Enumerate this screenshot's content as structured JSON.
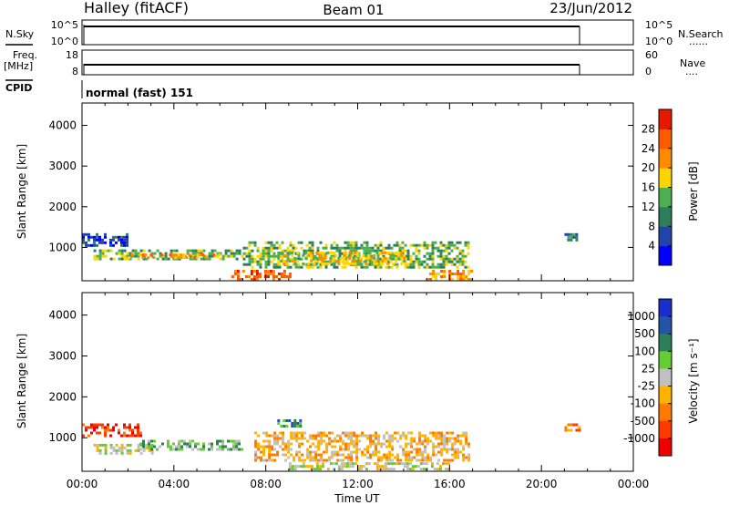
{
  "header": {
    "station": "Halley (fitACF)",
    "beam": "Beam 01",
    "date": "23/Jun/2012"
  },
  "top_panels": {
    "nsky_label": "N.Sky",
    "nsearch_label": "N.Search",
    "nsearch_dots": "......",
    "freq_label": "Freq.",
    "freq_unit": "[MHz]",
    "nave_label": "Nave",
    "nave_dots": "....",
    "cpid_label": "CPID",
    "cpid_value": "normal (fast) 151",
    "noise_ticks_left": [
      "10^5",
      "10^0"
    ],
    "noise_ticks_right": [
      "10^5",
      "10^0"
    ],
    "freq_ticks_left": [
      "18",
      "8"
    ],
    "nave_ticks_right": [
      "60",
      "0"
    ]
  },
  "chart_data": [
    {
      "type": "heatmap",
      "name": "power",
      "ylabel": "Slant Range [km]",
      "yticks": [
        "1000",
        "2000",
        "3000",
        "4000"
      ],
      "ylim": [
        180,
        4550
      ],
      "xlim": [
        0,
        24
      ],
      "colorbar_label": "Power [dB]",
      "colorbar_ticks": [
        "4",
        "8",
        "12",
        "16",
        "20",
        "24",
        "28"
      ],
      "colors": [
        "#0000ff",
        "#2244aa",
        "#2e7d5b",
        "#4caf50",
        "#ffd400",
        "#ff8c00",
        "#ff5a00",
        "#e81800"
      ],
      "echo_bands": [
        {
          "t": [
            0.0,
            2.0
          ],
          "r": [
            1050,
            1350
          ],
          "level": 1
        },
        {
          "t": [
            0.5,
            7.0
          ],
          "r": [
            720,
            950
          ],
          "level": 3
        },
        {
          "t": [
            2.0,
            6.0
          ],
          "r": [
            750,
            850
          ],
          "level": 5
        },
        {
          "t": [
            7.0,
            16.8
          ],
          "r": [
            500,
            1150
          ],
          "level": 3
        },
        {
          "t": [
            8.5,
            14.0
          ],
          "r": [
            600,
            900
          ],
          "level": 4
        },
        {
          "t": [
            6.5,
            9.0
          ],
          "r": [
            200,
            450
          ],
          "level": 6
        },
        {
          "t": [
            15.0,
            17.0
          ],
          "r": [
            200,
            450
          ],
          "level": 5
        },
        {
          "t": [
            21.0,
            21.7
          ],
          "r": [
            1150,
            1350
          ],
          "level": 2
        }
      ]
    },
    {
      "type": "heatmap",
      "name": "velocity",
      "ylabel": "Slant Range [km]",
      "yticks": [
        "1000",
        "2000",
        "3000",
        "4000"
      ],
      "ylim": [
        180,
        4550
      ],
      "xlim": [
        0,
        24
      ],
      "xticks": [
        "00:00",
        "04:00",
        "08:00",
        "12:00",
        "16:00",
        "20:00",
        "00:00"
      ],
      "xlabel": "Time UT",
      "colorbar_label": "Velocity [m s⁻¹]",
      "colorbar_ticks": [
        "1000",
        "500",
        "100",
        "25",
        "-25",
        "-100",
        "-500",
        "-1000"
      ],
      "colors": [
        "#1a2ccc",
        "#2255aa",
        "#2e7d5b",
        "#66cc33",
        "#c0c0c0",
        "#ffb300",
        "#ff7a00",
        "#ff3a00",
        "#ee0000"
      ],
      "echo_bands": [
        {
          "t": [
            0.0,
            2.5
          ],
          "r": [
            1050,
            1350
          ],
          "level": 7
        },
        {
          "t": [
            0.5,
            3.0
          ],
          "r": [
            600,
            850
          ],
          "level": 4
        },
        {
          "t": [
            2.5,
            7.0
          ],
          "r": [
            720,
            950
          ],
          "level": 3
        },
        {
          "t": [
            7.5,
            16.8
          ],
          "r": [
            450,
            1150
          ],
          "level": 5
        },
        {
          "t": [
            9.0,
            16.0
          ],
          "r": [
            200,
            400
          ],
          "level": 4
        },
        {
          "t": [
            8.5,
            9.5
          ],
          "r": [
            1250,
            1450
          ],
          "level": 2
        },
        {
          "t": [
            21.0,
            21.7
          ],
          "r": [
            1150,
            1350
          ],
          "level": 6
        }
      ]
    }
  ]
}
